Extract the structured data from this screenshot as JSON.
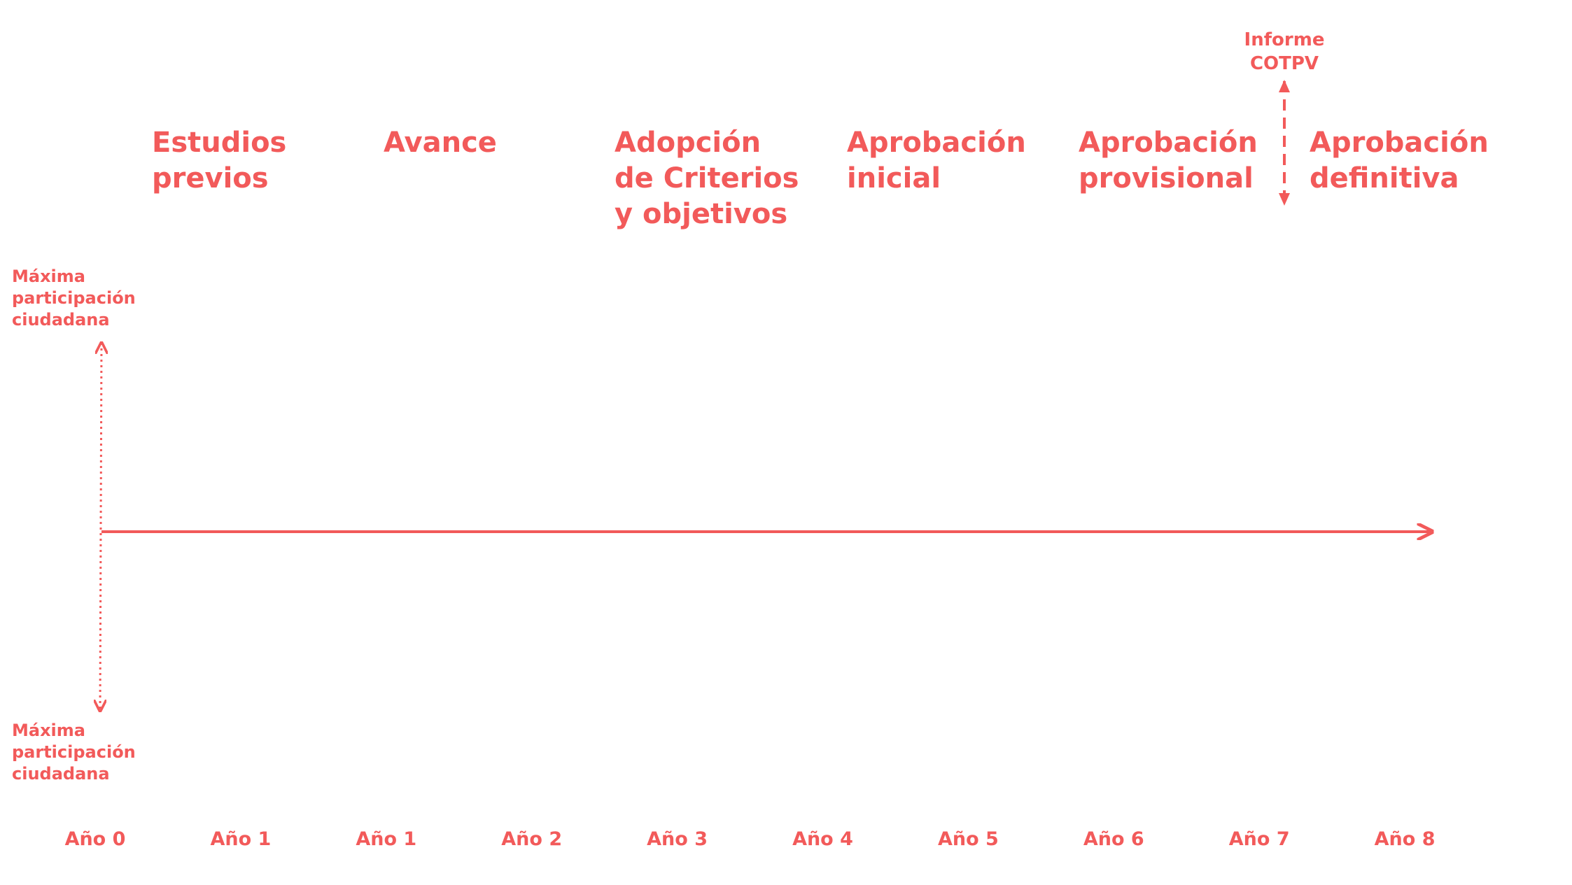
{
  "phases": [
    {
      "lines": [
        "Estudios",
        "previos"
      ]
    },
    {
      "lines": [
        "Avance"
      ]
    },
    {
      "lines": [
        "Adopción",
        "de Criterios",
        "y objetivos"
      ]
    },
    {
      "lines": [
        "Aprobación",
        "inicial"
      ]
    },
    {
      "lines": [
        "Aprobación",
        "provisional"
      ]
    },
    {
      "lines": [
        "Aprobación",
        "definitiva"
      ]
    }
  ],
  "annotation": {
    "lines": [
      "Informe",
      "COTPV"
    ]
  },
  "participation": {
    "top": [
      "Máxima",
      "participación",
      "ciudadana"
    ],
    "bottom": [
      "Máxima",
      "participación",
      "ciudadana"
    ]
  },
  "years": [
    "Año 0",
    "Año 1",
    "Año 1",
    "Año 2",
    "Año 3",
    "Año 4",
    "Año 5",
    "Año 6",
    "Año 7",
    "Año 8"
  ]
}
